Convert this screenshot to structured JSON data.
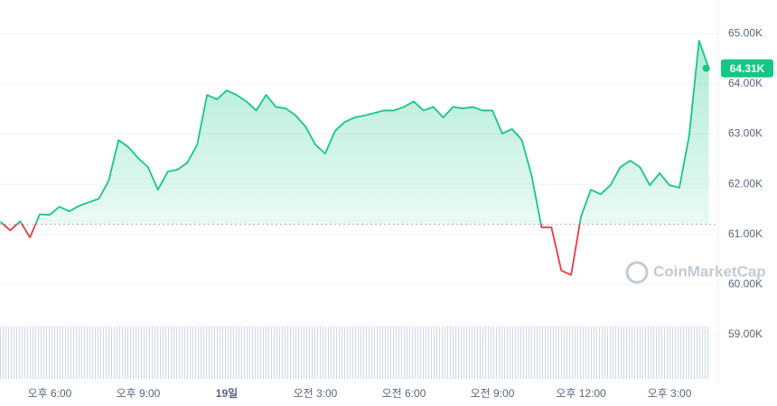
{
  "chart_data": {
    "type": "line",
    "categories": [
      null,
      null,
      null,
      null,
      null,
      "오후 6:00",
      null,
      null,
      null,
      null,
      null,
      null,
      null,
      null,
      "오후 9:00",
      null,
      null,
      null,
      null,
      null,
      null,
      null,
      null,
      "19일",
      null,
      null,
      null,
      null,
      null,
      null,
      null,
      null,
      "오전 3:00",
      null,
      null,
      null,
      null,
      null,
      null,
      null,
      null,
      "오전 6:00",
      null,
      null,
      null,
      null,
      null,
      null,
      null,
      null,
      "오전 9:00",
      null,
      null,
      null,
      null,
      null,
      null,
      null,
      null,
      "오후 12:00",
      null,
      null,
      null,
      null,
      null,
      null,
      null,
      null,
      "오후 3:00",
      null,
      null,
      null,
      null
    ],
    "series": [
      {
        "name": "Price",
        "color": "#16c784",
        "down_color": "#ea3943",
        "values": [
          61250,
          61080,
          61260,
          60940,
          61400,
          61390,
          61550,
          61460,
          61570,
          61640,
          61710,
          62070,
          62880,
          62740,
          62520,
          62340,
          61890,
          62250,
          62290,
          62430,
          62790,
          63780,
          63690,
          63870,
          63780,
          63650,
          63470,
          63780,
          63540,
          63510,
          63370,
          63150,
          62790,
          62610,
          63060,
          63240,
          63330,
          63370,
          63420,
          63470,
          63470,
          63540,
          63650,
          63470,
          63540,
          63330,
          63540,
          63510,
          63540,
          63470,
          63470,
          63010,
          63100,
          62880,
          62160,
          61140,
          61140,
          60280,
          60190,
          61350,
          61890,
          61800,
          61980,
          62340,
          62470,
          62340,
          61980,
          62220,
          61980,
          61930,
          62970,
          64860,
          64310
        ]
      }
    ],
    "baseline": 61200,
    "current_price": {
      "value": 64310,
      "label": "64.31K"
    },
    "ylim": [
      58100,
      65600
    ],
    "yticks": [
      {
        "value": 59000,
        "label": "59.00K"
      },
      {
        "value": 60000,
        "label": "60.00K"
      },
      {
        "value": 61000,
        "label": "61.00K"
      },
      {
        "value": 62000,
        "label": "62.00K"
      },
      {
        "value": 63000,
        "label": "63.00K"
      },
      {
        "value": 64000,
        "label": "64.00K"
      },
      {
        "value": 65000,
        "label": "65.00K"
      }
    ],
    "grid": true,
    "watermark": "CoinMarketCap"
  }
}
